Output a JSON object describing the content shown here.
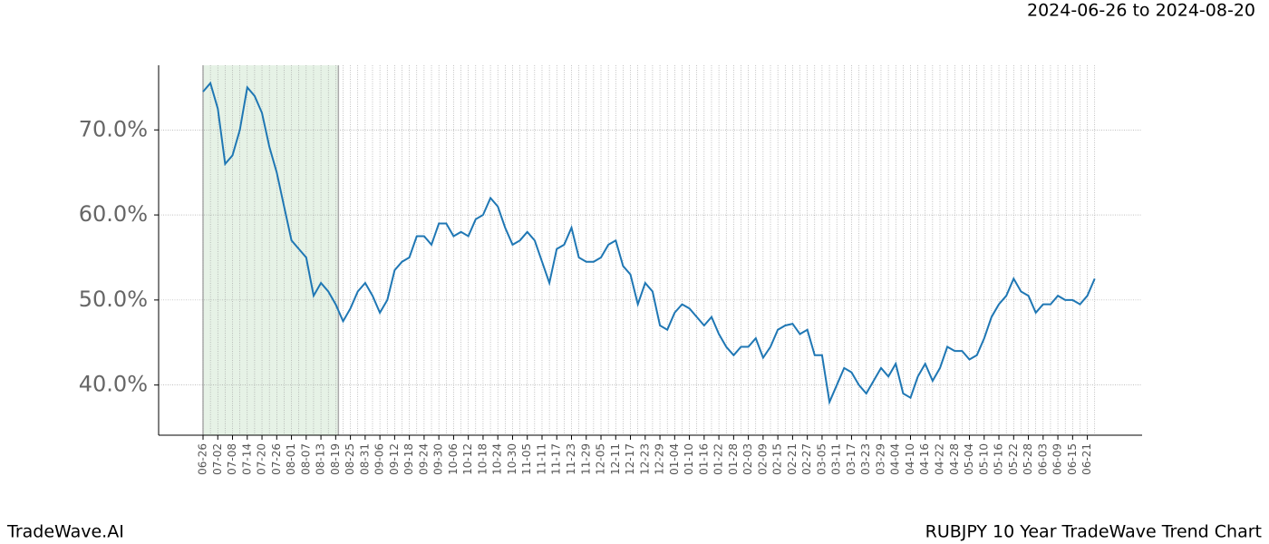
{
  "chart_data": {
    "type": "line",
    "title": "RUBJPY 10 Year TradeWave Trend Chart",
    "subtitle": "2024-06-26 to 2024-08-20",
    "brand": "TradeWave.AI",
    "categories": [
      "06-26",
      null,
      "07-02",
      null,
      "07-08",
      null,
      "07-14",
      null,
      "07-20",
      null,
      "07-26",
      null,
      "08-01",
      null,
      "08-07",
      null,
      "08-13",
      null,
      "08-19",
      null,
      "08-25",
      null,
      "08-31",
      null,
      "09-06",
      null,
      "09-12",
      null,
      "09-18",
      null,
      "09-24",
      null,
      "09-30",
      null,
      "10-06",
      null,
      "10-12",
      null,
      "10-18",
      null,
      "10-24",
      null,
      "10-30",
      null,
      "11-05",
      null,
      "11-11",
      null,
      "11-17",
      null,
      "11-23",
      null,
      "11-29",
      null,
      "12-05",
      null,
      "12-11",
      null,
      "12-17",
      null,
      "12-23",
      null,
      "12-29",
      null,
      "01-04",
      null,
      "01-10",
      null,
      "01-16",
      null,
      "01-22",
      null,
      "01-28",
      null,
      "02-03",
      null,
      "02-09",
      null,
      "02-15",
      null,
      "02-21",
      null,
      "02-27",
      null,
      "03-05",
      null,
      "03-11",
      null,
      "03-17",
      null,
      "03-23",
      null,
      "03-29",
      null,
      "04-04",
      null,
      "04-10",
      null,
      "04-16",
      null,
      "04-22",
      null,
      "04-28",
      null,
      "05-04",
      null,
      "05-10",
      null,
      "05-16",
      null,
      "05-22",
      null,
      "05-28",
      null,
      "06-03",
      null,
      "06-09",
      null,
      "06-15",
      null,
      "06-21",
      null
    ],
    "values": [
      74.5,
      75.5,
      72.5,
      66,
      67,
      70,
      75,
      74,
      72,
      68,
      65,
      61,
      57,
      56,
      55,
      50.5,
      52,
      51,
      49.5,
      47.5,
      49,
      51,
      52,
      50.5,
      48.5,
      50,
      53.5,
      54.5,
      55,
      57.5,
      57.5,
      56.5,
      59,
      59,
      57.5,
      58,
      57.5,
      59.5,
      60,
      62,
      61,
      58.5,
      56.5,
      57,
      58,
      57,
      54.5,
      52,
      56,
      56.5,
      58.5,
      55,
      54.5,
      54.5,
      55,
      56.5,
      57,
      54,
      53,
      49.5,
      52,
      51,
      47,
      46.5,
      48.5,
      49.5,
      49,
      48,
      47,
      48,
      46,
      44.5,
      43.5,
      44.5,
      44.5,
      45.5,
      43.2,
      44.5,
      46.5,
      47,
      47.2,
      46,
      46.5,
      43.5,
      43.5,
      38,
      40,
      42,
      41.5,
      40,
      39,
      40.5,
      42,
      41,
      42.5,
      39,
      38.5,
      41,
      42.5,
      40.5,
      42,
      44.5,
      44,
      44,
      43,
      43.5,
      45.5,
      48,
      49.5,
      50.5,
      52.5,
      51,
      50.5,
      48.5,
      49.5,
      49.5,
      50.5,
      50,
      50,
      49.5,
      50.5,
      52.5
    ],
    "color": "#1f77b4",
    "highlight_range": [
      "06-26",
      "08-19"
    ],
    "highlight_color": "#e6f2e6",
    "ylim": [
      34.1,
      77.6
    ],
    "yticks": [
      {
        "value": 40,
        "label": "40.0%"
      },
      {
        "value": 50,
        "label": "50.0%"
      },
      {
        "value": 60,
        "label": "60.0%"
      },
      {
        "value": 70,
        "label": "70.0%"
      }
    ],
    "grid": true
  }
}
